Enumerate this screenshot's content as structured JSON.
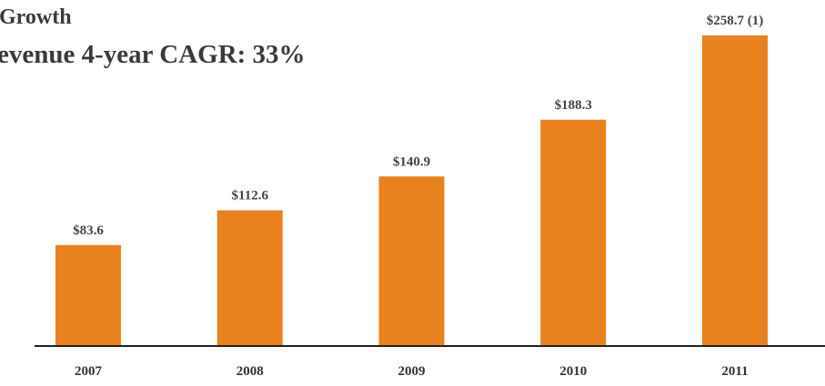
{
  "chart_data": {
    "type": "bar",
    "title": "Growth",
    "subtitle": "evenue 4-year CAGR: 33%",
    "categories": [
      "2007",
      "2008",
      "2009",
      "2010",
      "2011"
    ],
    "values": [
      83.6,
      112.6,
      140.9,
      188.3,
      258.7
    ],
    "value_labels": [
      "$83.6",
      "$112.6",
      "$140.9",
      "$188.3",
      "$258.7 (1)"
    ],
    "color": "#e8821e"
  }
}
